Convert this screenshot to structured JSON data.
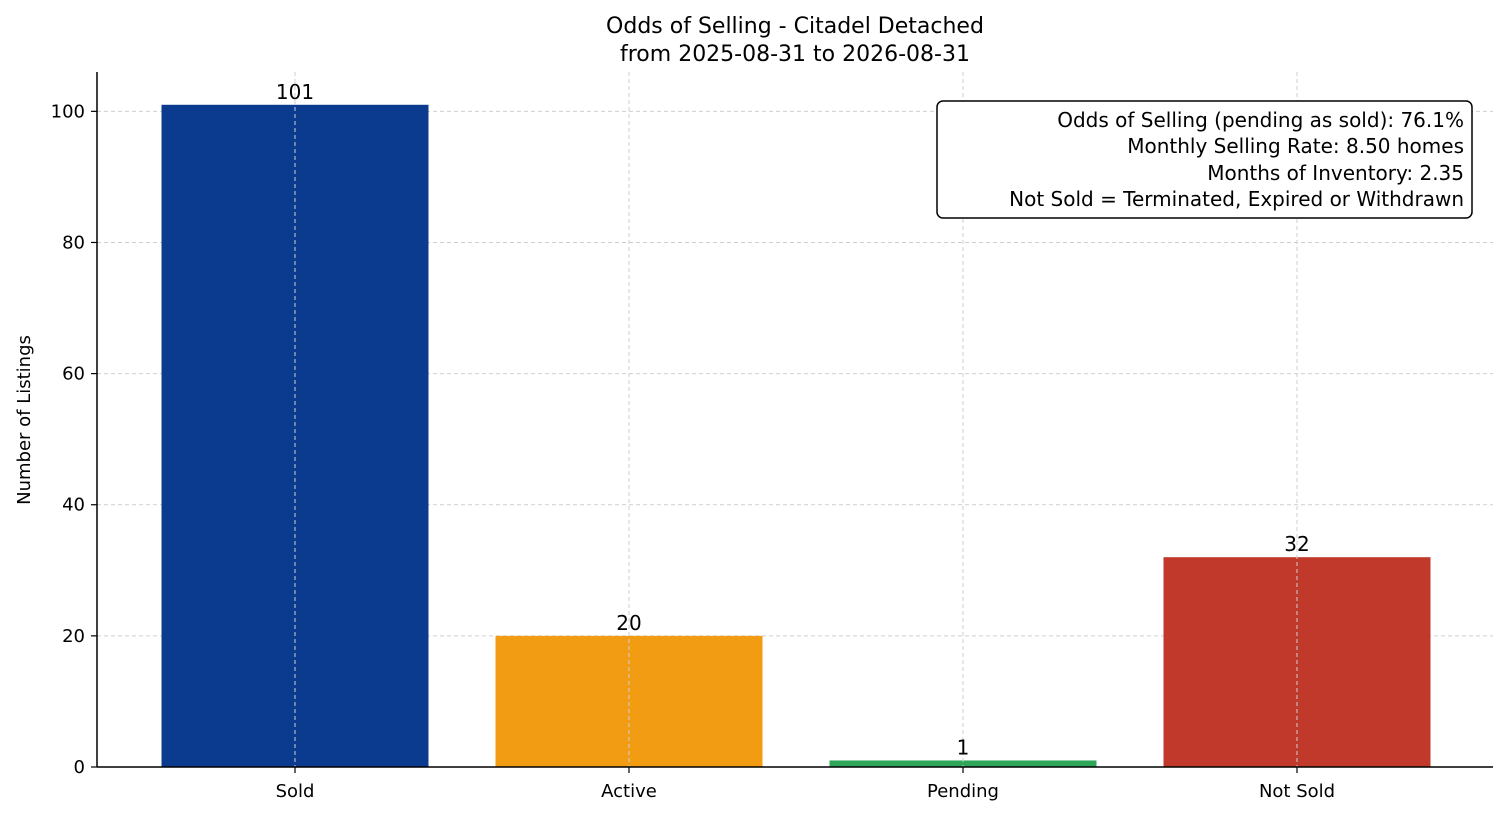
{
  "chart_data": {
    "type": "bar",
    "title": "Odds of Selling - Citadel Detached",
    "subtitle": "from 2025-08-31 to 2026-08-31",
    "xlabel": "",
    "ylabel": "Number of Listings",
    "categories": [
      "Sold",
      "Active",
      "Pending",
      "Not Sold"
    ],
    "values": [
      101,
      20,
      1,
      32
    ],
    "colors": [
      "#0b3b8f",
      "#f29c13",
      "#2ea65a",
      "#c0392b"
    ],
    "ylim": [
      0,
      106
    ],
    "yticks": [
      0,
      20,
      40,
      60,
      80,
      100
    ],
    "grid": true,
    "info_box": {
      "placement": "top-right",
      "lines": [
        "Odds of Selling (pending as sold): 76.1%",
        "Monthly Selling Rate: 8.50 homes",
        "Months of Inventory: 2.35",
        "Not Sold = Terminated, Expired or Withdrawn"
      ]
    }
  }
}
